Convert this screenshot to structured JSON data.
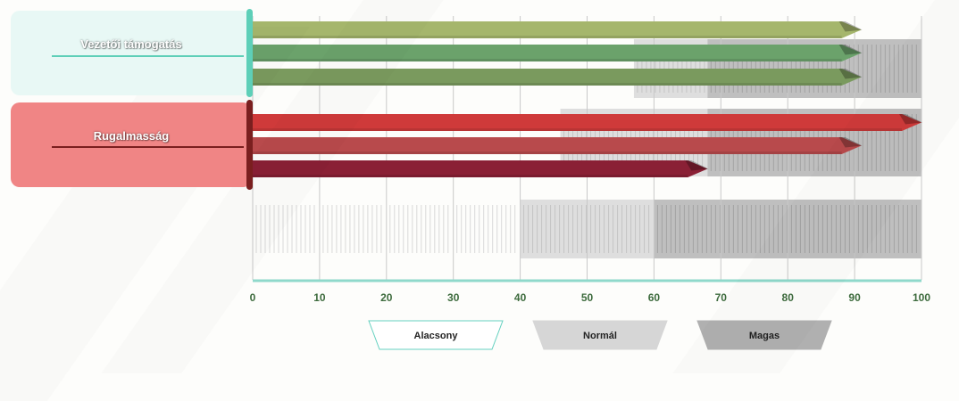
{
  "chart_data": {
    "type": "bar",
    "orientation": "horizontal",
    "categories": [
      "Vezetői támogatás",
      "Rugalmasság"
    ],
    "series_by_category": [
      {
        "category": "Vezetői támogatás",
        "values": [
          91,
          91,
          91
        ],
        "colors": [
          "#a5b66c",
          "#6ba26b",
          "#7a9a5e"
        ]
      },
      {
        "category": "Rugalmasság",
        "values": [
          100,
          91,
          68
        ],
        "colors": [
          "#cf3a3a",
          "#b84a4c",
          "#8a2035"
        ]
      }
    ],
    "group_colors": [
      {
        "fill": "#e8f8f5",
        "accent": "#5ecfb8"
      },
      {
        "fill": "#f08585",
        "accent": "#7a1f1f"
      }
    ],
    "xlim": [
      0,
      100
    ],
    "xticks": [
      0,
      10,
      20,
      30,
      40,
      50,
      60,
      70,
      80,
      90,
      100
    ],
    "reference_bands": [
      {
        "category": "Vezetői támogatás",
        "normal": [
          57,
          68
        ],
        "magas": [
          68,
          100
        ]
      },
      {
        "category": "Rugalmasság",
        "normal": [
          46,
          68
        ],
        "magas": [
          68,
          100
        ]
      },
      {
        "category": "",
        "normal": [
          40,
          60
        ],
        "magas": [
          60,
          100
        ]
      }
    ],
    "legend": [
      {
        "label": "Alacsony",
        "fill": "#ffffff",
        "stroke": "#66d1c0"
      },
      {
        "label": "Normál",
        "fill": "#d6d6d6",
        "stroke": "#d6d6d6"
      },
      {
        "label": "Magas",
        "fill": "#b0b0b0",
        "stroke": "#b0b0b0"
      }
    ],
    "grid": true,
    "legend_position": "bottom-center",
    "tick_color": "#3d6b3d"
  }
}
